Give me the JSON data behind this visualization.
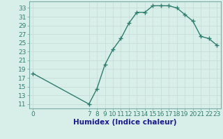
{
  "x": [
    0,
    7,
    8,
    9,
    10,
    11,
    12,
    13,
    14,
    15,
    16,
    17,
    18,
    19,
    20,
    21,
    22,
    23
  ],
  "y": [
    18,
    11,
    14.5,
    20,
    23.5,
    26,
    29.5,
    32,
    32,
    33.5,
    33.5,
    33.5,
    33,
    31.5,
    30,
    26.5,
    26,
    24.5
  ],
  "line_color": "#2e7d6e",
  "marker": "+",
  "marker_size": 4,
  "background_color": "#d8eee8",
  "grid_color": "#c8ddd8",
  "xlabel": "Humidex (Indice chaleur)",
  "xlim": [
    -0.5,
    23.5
  ],
  "ylim": [
    10,
    34.5
  ],
  "xticks": [
    0,
    7,
    8,
    9,
    10,
    11,
    12,
    13,
    14,
    15,
    16,
    17,
    18,
    19,
    20,
    21,
    22,
    23
  ],
  "yticks": [
    11,
    13,
    15,
    17,
    19,
    21,
    23,
    25,
    27,
    29,
    31,
    33
  ],
  "xlabel_fontsize": 7.5,
  "tick_fontsize": 6.5,
  "line_width": 1.0,
  "tick_color": "#2e7d6e",
  "label_color": "#1a1a8e"
}
